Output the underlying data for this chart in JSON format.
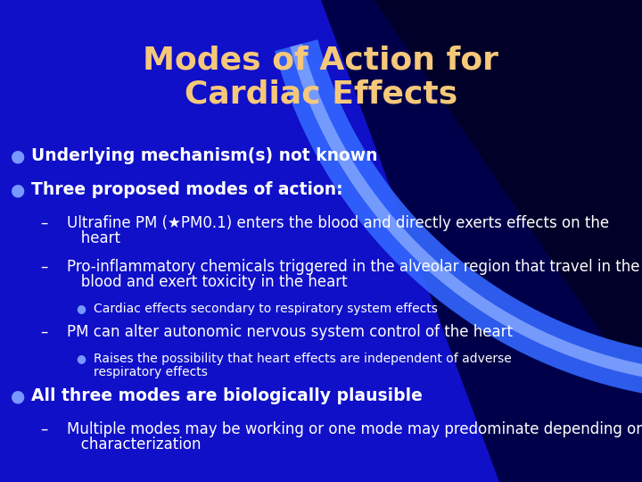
{
  "title_line1": "Modes of Action for",
  "title_line2": "Cardiac Effects",
  "title_color": "#F5C87A",
  "bg_dark": "#000820",
  "bg_blue": "#1515CC",
  "text_color": "#FFFFFF",
  "bullet_color": "#7799FF",
  "title_fontsize": 26,
  "body_fontsize": 13.5,
  "sub_fontsize": 12.0,
  "subsub_fontsize": 10.0,
  "content": [
    {
      "level": 0,
      "text": "Underlying mechanism(s) not known"
    },
    {
      "level": 0,
      "text": "Three proposed modes of action:"
    },
    {
      "level": 1,
      "text": "Ultrafine PM (★PM0.1) enters the blood and directly exerts effects on the heart",
      "multiline": true
    },
    {
      "level": 1,
      "text": "Pro-inflammatory chemicals triggered in the alveolar region that travel in the blood and exert toxicity in the heart",
      "multiline": true
    },
    {
      "level": 2,
      "text": "Cardiac effects secondary to respiratory system effects"
    },
    {
      "level": 1,
      "text": "PM can alter autonomic nervous system control of the heart"
    },
    {
      "level": 2,
      "text": "Raises the possibility that heart effects are independent of adverse respiratory effects",
      "multiline": true
    },
    {
      "level": 0,
      "text": "All three modes are biologically plausible"
    },
    {
      "level": 1,
      "text": "Multiple modes may be working or one mode may predominate depending on the PM characterization",
      "multiline": true
    }
  ]
}
